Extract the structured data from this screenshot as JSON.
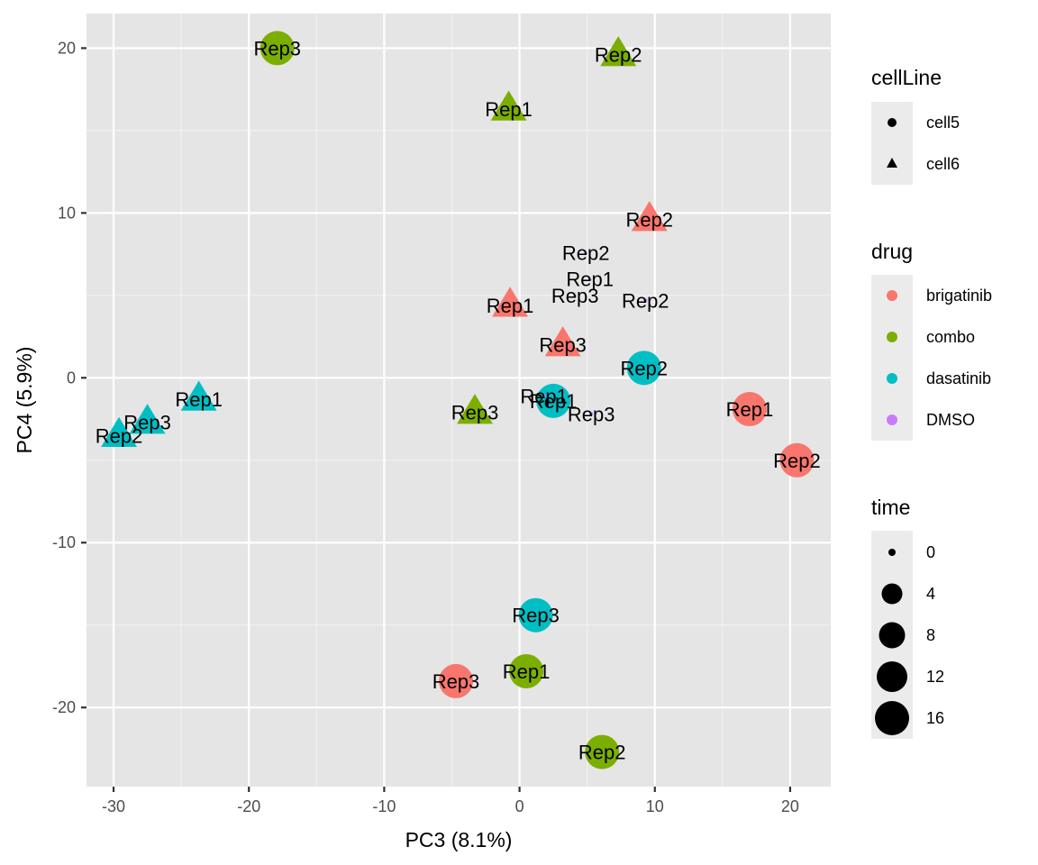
{
  "chart_data": {
    "type": "scatter",
    "title": "",
    "xlabel": "PC3 (8.1%)",
    "ylabel": "PC4 (5.9%)",
    "xlim": [
      -32,
      23
    ],
    "ylim": [
      -24.8,
      22.1
    ],
    "xticks": [
      -30,
      -20,
      -10,
      0,
      10,
      20
    ],
    "yticks": [
      -20,
      -10,
      0,
      10,
      20
    ],
    "grid": true,
    "legend_position": "right",
    "legends": {
      "cellLine": {
        "title": "cellLine",
        "items": [
          {
            "label": "cell5",
            "shape": "circle"
          },
          {
            "label": "cell6",
            "shape": "triangle"
          }
        ]
      },
      "drug": {
        "title": "drug",
        "items": [
          {
            "label": "brigatinib",
            "color": "#F8766D"
          },
          {
            "label": "combo",
            "color": "#7CAE00"
          },
          {
            "label": "dasatinib",
            "color": "#00BFC4"
          },
          {
            "label": "DMSO",
            "color": "#C77CFF"
          }
        ]
      },
      "time": {
        "title": "time",
        "items": [
          {
            "label": "0",
            "value": 0
          },
          {
            "label": "4",
            "value": 4
          },
          {
            "label": "8",
            "value": 8
          },
          {
            "label": "12",
            "value": 12
          },
          {
            "label": "16",
            "value": 16
          }
        ]
      }
    },
    "points": [
      {
        "x": -17.9,
        "y": 20.0,
        "label": "Rep3",
        "drug": "combo",
        "cellLine": "cell5",
        "time": 16
      },
      {
        "x": 7.3,
        "y": 19.6,
        "label": "Rep2",
        "drug": "combo",
        "cellLine": "cell6",
        "time": 16
      },
      {
        "x": -0.8,
        "y": 16.3,
        "label": "Rep1",
        "drug": "combo",
        "cellLine": "cell6",
        "time": 16
      },
      {
        "x": 9.6,
        "y": 9.6,
        "label": "Rep2",
        "drug": "brigatinib",
        "cellLine": "cell6",
        "time": 16
      },
      {
        "x": 4.9,
        "y": 7.6,
        "label": "Rep2",
        "drug": "DMSO",
        "cellLine": "cell6",
        "time": 0
      },
      {
        "x": 5.2,
        "y": 6.0,
        "label": "Rep1",
        "drug": "DMSO",
        "cellLine": "cell6",
        "time": 0
      },
      {
        "x": 4.1,
        "y": 5.0,
        "label": "Rep3",
        "drug": "DMSO",
        "cellLine": "cell6",
        "time": 0
      },
      {
        "x": 9.3,
        "y": 4.7,
        "label": "Rep2",
        "drug": "DMSO",
        "cellLine": "cell5",
        "time": 0
      },
      {
        "x": -0.7,
        "y": 4.4,
        "label": "Rep1",
        "drug": "brigatinib",
        "cellLine": "cell6",
        "time": 16
      },
      {
        "x": 3.2,
        "y": 2.0,
        "label": "Rep3",
        "drug": "brigatinib",
        "cellLine": "cell6",
        "time": 16
      },
      {
        "x": 9.2,
        "y": 0.6,
        "label": "Rep2",
        "drug": "dasatinib",
        "cellLine": "cell5",
        "time": 16
      },
      {
        "x": -3.3,
        "y": -2.1,
        "label": "Rep3",
        "drug": "combo",
        "cellLine": "cell6",
        "time": 16
      },
      {
        "x": 2.5,
        "y": -1.4,
        "label": "Rep1",
        "drug": "dasatinib",
        "cellLine": "cell5",
        "time": 16
      },
      {
        "x": 1.8,
        "y": -1.1,
        "label": "Rep1",
        "drug": "DMSO",
        "cellLine": "cell5",
        "time": 0
      },
      {
        "x": 5.3,
        "y": -2.2,
        "label": "Rep3",
        "drug": "DMSO",
        "cellLine": "cell5",
        "time": 0
      },
      {
        "x": 17.0,
        "y": -1.9,
        "label": "Rep1",
        "drug": "brigatinib",
        "cellLine": "cell5",
        "time": 16
      },
      {
        "x": 20.5,
        "y": -5.0,
        "label": "Rep2",
        "drug": "brigatinib",
        "cellLine": "cell5",
        "time": 16
      },
      {
        "x": -23.7,
        "y": -1.3,
        "label": "Rep1",
        "drug": "dasatinib",
        "cellLine": "cell6",
        "time": 16
      },
      {
        "x": -27.5,
        "y": -2.7,
        "label": "Rep3",
        "drug": "dasatinib",
        "cellLine": "cell6",
        "time": 16
      },
      {
        "x": -29.6,
        "y": -3.5,
        "label": "Rep2",
        "drug": "dasatinib",
        "cellLine": "cell6",
        "time": 16
      },
      {
        "x": 1.2,
        "y": -14.4,
        "label": "Rep3",
        "drug": "dasatinib",
        "cellLine": "cell5",
        "time": 16
      },
      {
        "x": -4.7,
        "y": -18.4,
        "label": "Rep3",
        "drug": "brigatinib",
        "cellLine": "cell5",
        "time": 16
      },
      {
        "x": 0.5,
        "y": -17.8,
        "label": "Rep1",
        "drug": "combo",
        "cellLine": "cell5",
        "time": 16
      },
      {
        "x": 6.1,
        "y": -22.7,
        "label": "Rep2",
        "drug": "combo",
        "cellLine": "cell5",
        "time": 16
      }
    ]
  }
}
